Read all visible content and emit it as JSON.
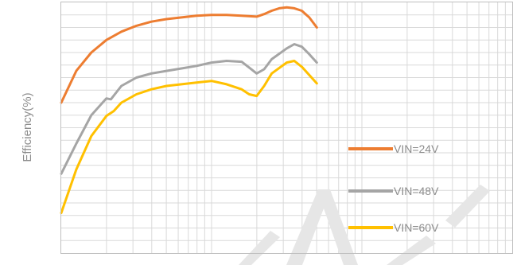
{
  "chart_data": {
    "type": "line",
    "xscale": "log",
    "grid": true,
    "legend_position": "bottom-right",
    "ylabel": "Efficiency(%)",
    "xlabel": "",
    "series": [
      {
        "name": "VIN=24V",
        "color": "#ED7D31",
        "points": [
          [
            0,
            0.78
          ],
          [
            0.1,
            0.818
          ],
          [
            0.2,
            0.84
          ],
          [
            0.3,
            0.855
          ],
          [
            0.4,
            0.865
          ],
          [
            0.5,
            0.872
          ],
          [
            0.6,
            0.877
          ],
          [
            0.7,
            0.88
          ],
          [
            0.8,
            0.882
          ],
          [
            0.9,
            0.884
          ],
          [
            1.0,
            0.885
          ],
          [
            1.1,
            0.885
          ],
          [
            1.2,
            0.884
          ],
          [
            1.3,
            0.883
          ],
          [
            1.35,
            0.886
          ],
          [
            1.4,
            0.89
          ],
          [
            1.45,
            0.893
          ],
          [
            1.5,
            0.894
          ],
          [
            1.55,
            0.893
          ],
          [
            1.6,
            0.89
          ],
          [
            1.65,
            0.882
          ],
          [
            1.7,
            0.87
          ]
        ]
      },
      {
        "name": "VIN=48V",
        "color": "#A5A5A5",
        "points": [
          [
            0,
            0.695
          ],
          [
            0.1,
            0.731
          ],
          [
            0.2,
            0.765
          ],
          [
            0.3,
            0.785
          ],
          [
            0.33,
            0.784
          ],
          [
            0.4,
            0.8
          ],
          [
            0.5,
            0.81
          ],
          [
            0.6,
            0.815
          ],
          [
            0.7,
            0.818
          ],
          [
            0.8,
            0.821
          ],
          [
            0.9,
            0.824
          ],
          [
            1.0,
            0.828
          ],
          [
            1.1,
            0.83
          ],
          [
            1.2,
            0.829
          ],
          [
            1.25,
            0.822
          ],
          [
            1.3,
            0.815
          ],
          [
            1.35,
            0.82
          ],
          [
            1.4,
            0.832
          ],
          [
            1.5,
            0.845
          ],
          [
            1.55,
            0.85
          ],
          [
            1.6,
            0.847
          ],
          [
            1.65,
            0.838
          ],
          [
            1.7,
            0.828
          ]
        ]
      },
      {
        "name": "VIN=60V",
        "color": "#FFC000",
        "points": [
          [
            0,
            0.648
          ],
          [
            0.1,
            0.7
          ],
          [
            0.2,
            0.74
          ],
          [
            0.3,
            0.764
          ],
          [
            0.35,
            0.77
          ],
          [
            0.4,
            0.78
          ],
          [
            0.5,
            0.79
          ],
          [
            0.6,
            0.796
          ],
          [
            0.7,
            0.8
          ],
          [
            0.8,
            0.802
          ],
          [
            0.9,
            0.804
          ],
          [
            1.0,
            0.806
          ],
          [
            1.1,
            0.802
          ],
          [
            1.2,
            0.796
          ],
          [
            1.25,
            0.79
          ],
          [
            1.3,
            0.788
          ],
          [
            1.35,
            0.8
          ],
          [
            1.4,
            0.815
          ],
          [
            1.5,
            0.828
          ],
          [
            1.55,
            0.83
          ],
          [
            1.6,
            0.823
          ],
          [
            1.7,
            0.803
          ]
        ]
      }
    ]
  }
}
